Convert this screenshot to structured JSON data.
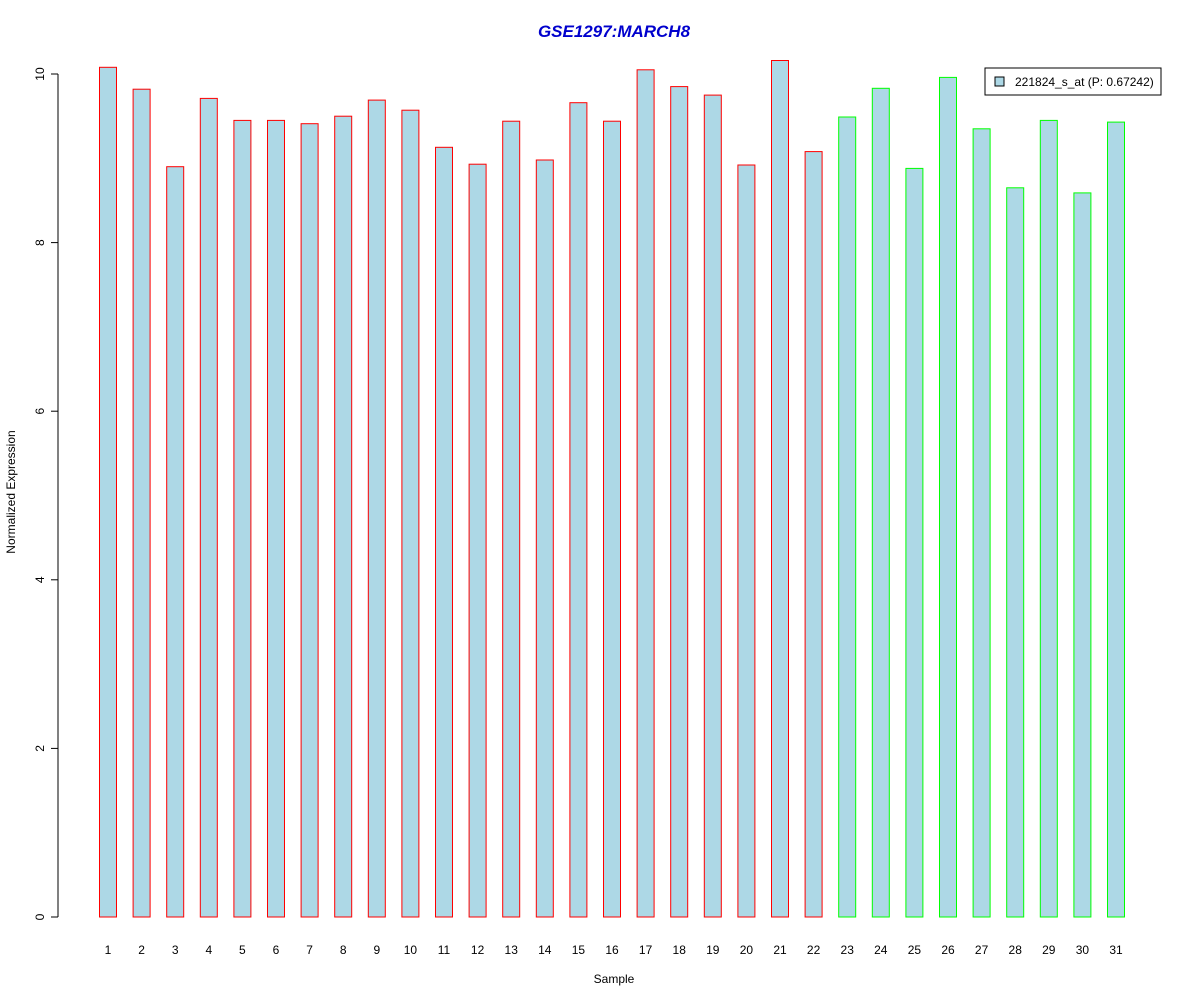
{
  "chart_data": {
    "type": "bar",
    "title": "GSE1297:MARCH8",
    "xlabel": "Sample",
    "ylabel": "Normalized Expression",
    "ylim": [
      0,
      10
    ],
    "yticks": [
      "0",
      "2",
      "4",
      "6",
      "8",
      "10"
    ],
    "categories": [
      "1",
      "2",
      "3",
      "4",
      "5",
      "6",
      "7",
      "8",
      "9",
      "10",
      "11",
      "12",
      "13",
      "14",
      "15",
      "16",
      "17",
      "18",
      "19",
      "20",
      "21",
      "22",
      "23",
      "24",
      "25",
      "26",
      "27",
      "28",
      "29",
      "30",
      "31"
    ],
    "series": [
      {
        "name": "221824_s_at (P: 0.67242)",
        "values": [
          10.08,
          9.82,
          8.9,
          9.71,
          9.45,
          9.45,
          9.41,
          9.5,
          9.69,
          9.57,
          9.13,
          8.93,
          9.44,
          8.98,
          9.66,
          9.44,
          10.05,
          9.85,
          9.75,
          8.92,
          10.16,
          9.08,
          9.49,
          9.83,
          8.88,
          9.96,
          9.35,
          8.65,
          9.45,
          8.59,
          9.43
        ]
      }
    ],
    "group_border_colors": [
      "#ff0000",
      "#ff0000",
      "#ff0000",
      "#ff0000",
      "#ff0000",
      "#ff0000",
      "#ff0000",
      "#ff0000",
      "#ff0000",
      "#ff0000",
      "#ff0000",
      "#ff0000",
      "#ff0000",
      "#ff0000",
      "#ff0000",
      "#ff0000",
      "#ff0000",
      "#ff0000",
      "#ff0000",
      "#ff0000",
      "#ff0000",
      "#ff0000",
      "#00ff00",
      "#00ff00",
      "#00ff00",
      "#00ff00",
      "#00ff00",
      "#00ff00",
      "#00ff00",
      "#00ff00",
      "#00ff00"
    ],
    "bar_fill_color": "#add8e6",
    "title_color": "#0000cd",
    "grid": false,
    "legend_position": "top-right"
  }
}
